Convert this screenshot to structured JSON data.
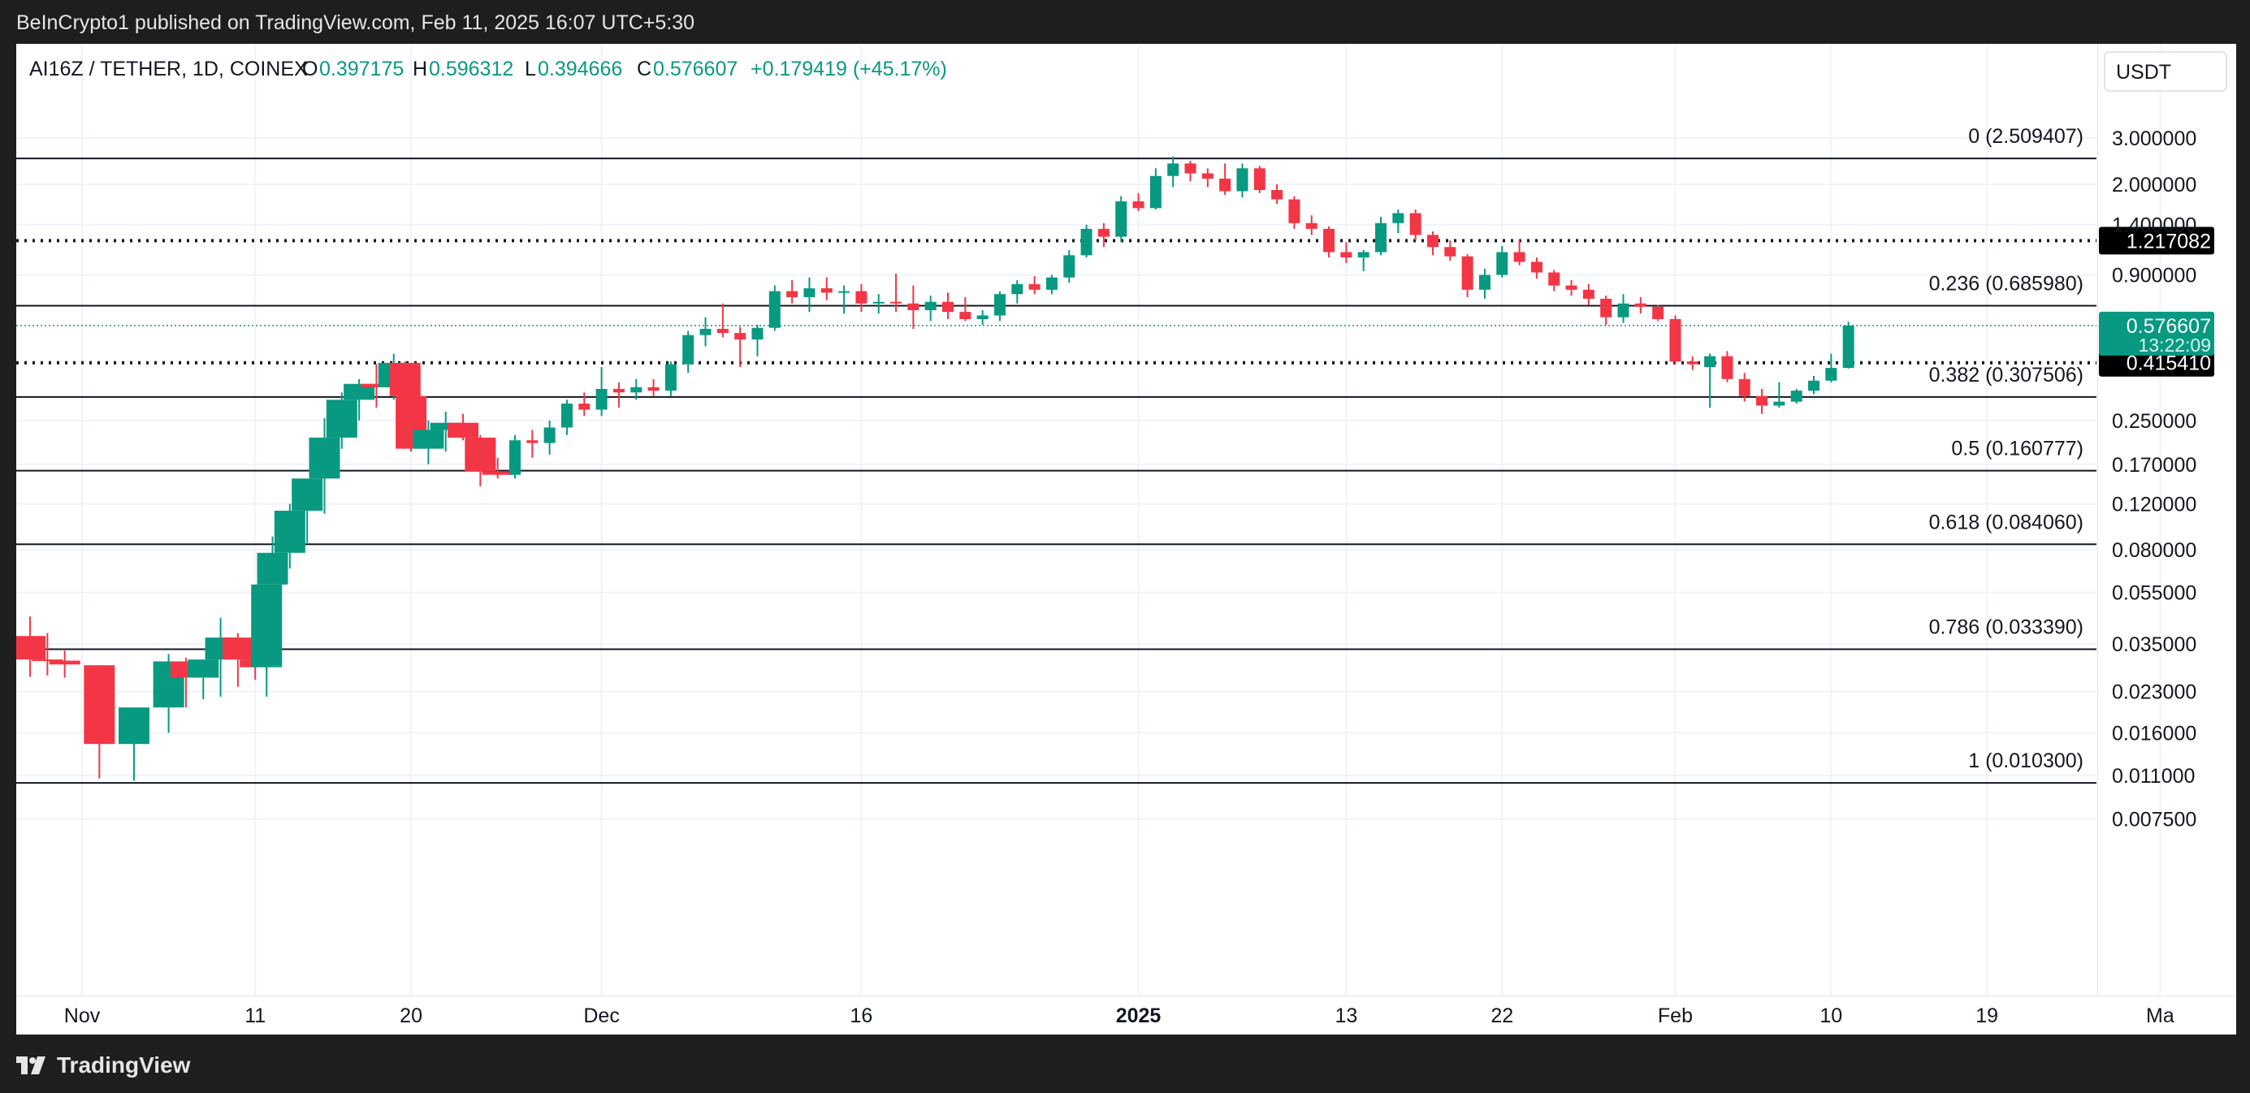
{
  "header": {
    "published": "BeInCrypto1 published on TradingView.com, Feb 11, 2025 16:07 UTC+5:30"
  },
  "legend": {
    "symbol": "AI16Z / TETHER, 1D, COINEX",
    "o_label": "O",
    "o_value": "0.397175",
    "h_label": "H",
    "h_value": "0.596312",
    "l_label": "L",
    "l_value": "0.394666",
    "c_label": "C",
    "c_value": "0.576607",
    "change": "+0.179419 (+45.17%)"
  },
  "currency": "USDT",
  "footer": {
    "brand": "TradingView"
  },
  "colors": {
    "up": "#089981",
    "down": "#f23645",
    "text": "#131722",
    "grid": "#f0f3fa",
    "axis_text": "#131722",
    "price_tag": "#089981",
    "dark_tag": "#000000"
  },
  "chart_data": {
    "type": "candlestick",
    "y_scale": "log",
    "y_ticks": [
      "3.000000",
      "2.000000",
      "1.400000",
      "0.900000",
      "0.250000",
      "0.170000",
      "0.120000",
      "0.080000",
      "0.055000",
      "0.035000",
      "0.023000",
      "0.016000",
      "0.011000",
      "0.007500"
    ],
    "y_tick_values": [
      3.0,
      2.0,
      1.4,
      0.9,
      0.25,
      0.17,
      0.12,
      0.08,
      0.055,
      0.035,
      0.023,
      0.016,
      0.011,
      0.0075
    ],
    "x_ticks": [
      {
        "label": "Nov",
        "date": "2024-11-01",
        "bold": false
      },
      {
        "label": "11",
        "date": "2024-11-11",
        "bold": false
      },
      {
        "label": "20",
        "date": "2024-11-20",
        "bold": false
      },
      {
        "label": "Dec",
        "date": "2024-12-01",
        "bold": false
      },
      {
        "label": "16",
        "date": "2024-12-16",
        "bold": false
      },
      {
        "label": "2025",
        "date": "2025-01-01",
        "bold": true
      },
      {
        "label": "13",
        "date": "2025-01-13",
        "bold": false
      },
      {
        "label": "22",
        "date": "2025-01-22",
        "bold": false
      },
      {
        "label": "Feb",
        "date": "2025-02-01",
        "bold": false
      },
      {
        "label": "10",
        "date": "2025-02-10",
        "bold": false
      },
      {
        "label": "19",
        "date": "2025-02-19",
        "bold": false
      },
      {
        "label": "Ma",
        "date": "2025-03-01",
        "bold": false
      }
    ],
    "fib_levels": [
      {
        "label": "0 (2.509407)",
        "value": 2.509407,
        "style": "solid"
      },
      {
        "label": "0.236 (0.685980)",
        "value": 0.68598,
        "style": "solid"
      },
      {
        "label": "0.382 (0.307506)",
        "value": 0.307506,
        "style": "solid"
      },
      {
        "label": "0.5 (0.160777)",
        "value": 0.160777,
        "style": "solid"
      },
      {
        "label": "0.618 (0.084060)",
        "value": 0.08406,
        "style": "solid"
      },
      {
        "label": "0.786 (0.033390)",
        "value": 0.03339,
        "style": "solid"
      },
      {
        "label": "1 (0.010300)",
        "value": 0.0103,
        "style": "solid"
      }
    ],
    "key_levels": [
      {
        "label": "1.217082",
        "value": 1.217082,
        "style": "dotted"
      },
      {
        "label": "0.415410",
        "value": 0.41541,
        "style": "dotted"
      }
    ],
    "last_price": {
      "label": "0.576607",
      "countdown": "13:22:09",
      "value": 0.576607
    },
    "candles": [
      {
        "date": "2024-10-29",
        "o": 0.0375,
        "h": 0.0445,
        "l": 0.0262,
        "c": 0.0305
      },
      {
        "date": "2024-10-30",
        "o": 0.0305,
        "h": 0.0385,
        "l": 0.0265,
        "c": 0.0302
      },
      {
        "date": "2024-10-31",
        "o": 0.0302,
        "h": 0.033,
        "l": 0.026,
        "c": 0.0292
      },
      {
        "date": "2024-11-02",
        "o": 0.029,
        "h": 0.029,
        "l": 0.0107,
        "c": 0.0145
      },
      {
        "date": "2024-11-04",
        "o": 0.0145,
        "h": 0.02,
        "l": 0.0105,
        "c": 0.02
      },
      {
        "date": "2024-11-06",
        "o": 0.02,
        "h": 0.032,
        "l": 0.016,
        "c": 0.03
      },
      {
        "date": "2024-11-07",
        "o": 0.03,
        "h": 0.031,
        "l": 0.02,
        "c": 0.026
      },
      {
        "date": "2024-11-08",
        "o": 0.026,
        "h": 0.0305,
        "l": 0.0215,
        "c": 0.0305
      },
      {
        "date": "2024-11-09",
        "o": 0.0305,
        "h": 0.044,
        "l": 0.022,
        "c": 0.037
      },
      {
        "date": "2024-11-10",
        "o": 0.037,
        "h": 0.0385,
        "l": 0.024,
        "c": 0.0305
      },
      {
        "date": "2024-11-11",
        "o": 0.0305,
        "h": 0.033,
        "l": 0.0255,
        "c": 0.0285
      },
      {
        "date": "2024-11-11",
        "o": 0.0285,
        "h": 0.034,
        "l": 0.022,
        "c": 0.029
      },
      {
        "date": "2024-11-11",
        "o": 0.029,
        "h": 0.062,
        "l": 0.027,
        "c": 0.059
      },
      {
        "date": "2024-11-12",
        "o": 0.059,
        "h": 0.09,
        "l": 0.055,
        "c": 0.078
      },
      {
        "date": "2024-11-13",
        "o": 0.078,
        "h": 0.12,
        "l": 0.068,
        "c": 0.113
      },
      {
        "date": "2024-11-14",
        "o": 0.113,
        "h": 0.14,
        "l": 0.085,
        "c": 0.15
      },
      {
        "date": "2024-11-15",
        "o": 0.15,
        "h": 0.255,
        "l": 0.11,
        "c": 0.215
      },
      {
        "date": "2024-11-16",
        "o": 0.215,
        "h": 0.32,
        "l": 0.195,
        "c": 0.3
      },
      {
        "date": "2024-11-17",
        "o": 0.3,
        "h": 0.36,
        "l": 0.25,
        "c": 0.345
      },
      {
        "date": "2024-11-18",
        "o": 0.345,
        "h": 0.41,
        "l": 0.28,
        "c": 0.335
      },
      {
        "date": "2024-11-19",
        "o": 0.335,
        "h": 0.45,
        "l": 0.3,
        "c": 0.415
      },
      {
        "date": "2024-11-19",
        "o": 0.415,
        "h": 0.42,
        "l": 0.29,
        "c": 0.31
      },
      {
        "date": "2024-11-20",
        "o": 0.31,
        "h": 0.32,
        "l": 0.19,
        "c": 0.195
      },
      {
        "date": "2024-11-21",
        "o": 0.195,
        "h": 0.25,
        "l": 0.17,
        "c": 0.23
      },
      {
        "date": "2024-11-22",
        "o": 0.23,
        "h": 0.27,
        "l": 0.19,
        "c": 0.245
      },
      {
        "date": "2024-11-23",
        "o": 0.245,
        "h": 0.265,
        "l": 0.21,
        "c": 0.215
      },
      {
        "date": "2024-11-24",
        "o": 0.215,
        "h": 0.22,
        "l": 0.14,
        "c": 0.16
      },
      {
        "date": "2024-11-25",
        "o": 0.16,
        "h": 0.18,
        "l": 0.15,
        "c": 0.155
      },
      {
        "date": "2024-11-26",
        "o": 0.155,
        "h": 0.22,
        "l": 0.15,
        "c": 0.21
      },
      {
        "date": "2024-11-27",
        "o": 0.21,
        "h": 0.23,
        "l": 0.18,
        "c": 0.205
      },
      {
        "date": "2024-11-28",
        "o": 0.205,
        "h": 0.25,
        "l": 0.185,
        "c": 0.235
      },
      {
        "date": "2024-11-29",
        "o": 0.235,
        "h": 0.3,
        "l": 0.22,
        "c": 0.29
      },
      {
        "date": "2024-11-30",
        "o": 0.29,
        "h": 0.32,
        "l": 0.26,
        "c": 0.275
      },
      {
        "date": "2024-12-01",
        "o": 0.275,
        "h": 0.4,
        "l": 0.26,
        "c": 0.33
      },
      {
        "date": "2024-12-02",
        "o": 0.33,
        "h": 0.35,
        "l": 0.28,
        "c": 0.32
      },
      {
        "date": "2024-12-03",
        "o": 0.32,
        "h": 0.36,
        "l": 0.3,
        "c": 0.335
      },
      {
        "date": "2024-12-04",
        "o": 0.335,
        "h": 0.36,
        "l": 0.31,
        "c": 0.325
      },
      {
        "date": "2024-12-05",
        "o": 0.325,
        "h": 0.42,
        "l": 0.31,
        "c": 0.41
      },
      {
        "date": "2024-12-06",
        "o": 0.41,
        "h": 0.55,
        "l": 0.38,
        "c": 0.53
      },
      {
        "date": "2024-12-07",
        "o": 0.53,
        "h": 0.62,
        "l": 0.48,
        "c": 0.56
      },
      {
        "date": "2024-12-08",
        "o": 0.56,
        "h": 0.7,
        "l": 0.52,
        "c": 0.54
      },
      {
        "date": "2024-12-09",
        "o": 0.54,
        "h": 0.57,
        "l": 0.4,
        "c": 0.51
      },
      {
        "date": "2024-12-10",
        "o": 0.51,
        "h": 0.58,
        "l": 0.44,
        "c": 0.565
      },
      {
        "date": "2024-12-11",
        "o": 0.565,
        "h": 0.82,
        "l": 0.55,
        "c": 0.78
      },
      {
        "date": "2024-12-12",
        "o": 0.78,
        "h": 0.86,
        "l": 0.7,
        "c": 0.74
      },
      {
        "date": "2024-12-13",
        "o": 0.74,
        "h": 0.88,
        "l": 0.65,
        "c": 0.8
      },
      {
        "date": "2024-12-14",
        "o": 0.8,
        "h": 0.88,
        "l": 0.72,
        "c": 0.77
      },
      {
        "date": "2024-12-15",
        "o": 0.77,
        "h": 0.82,
        "l": 0.64,
        "c": 0.78
      },
      {
        "date": "2024-12-16",
        "o": 0.78,
        "h": 0.83,
        "l": 0.65,
        "c": 0.7
      },
      {
        "date": "2024-12-17",
        "o": 0.7,
        "h": 0.76,
        "l": 0.64,
        "c": 0.71
      },
      {
        "date": "2024-12-18",
        "o": 0.71,
        "h": 0.91,
        "l": 0.65,
        "c": 0.7
      },
      {
        "date": "2024-12-19",
        "o": 0.7,
        "h": 0.82,
        "l": 0.56,
        "c": 0.66
      },
      {
        "date": "2024-12-20",
        "o": 0.66,
        "h": 0.75,
        "l": 0.6,
        "c": 0.71
      },
      {
        "date": "2024-12-21",
        "o": 0.71,
        "h": 0.77,
        "l": 0.61,
        "c": 0.65
      },
      {
        "date": "2024-12-22",
        "o": 0.65,
        "h": 0.74,
        "l": 0.6,
        "c": 0.61
      },
      {
        "date": "2024-12-23",
        "o": 0.61,
        "h": 0.66,
        "l": 0.58,
        "c": 0.63
      },
      {
        "date": "2024-12-24",
        "o": 0.63,
        "h": 0.78,
        "l": 0.6,
        "c": 0.76
      },
      {
        "date": "2024-12-25",
        "o": 0.76,
        "h": 0.86,
        "l": 0.7,
        "c": 0.83
      },
      {
        "date": "2024-12-26",
        "o": 0.83,
        "h": 0.89,
        "l": 0.76,
        "c": 0.79
      },
      {
        "date": "2024-12-27",
        "o": 0.79,
        "h": 0.9,
        "l": 0.76,
        "c": 0.88
      },
      {
        "date": "2024-12-28",
        "o": 0.88,
        "h": 1.12,
        "l": 0.84,
        "c": 1.07
      },
      {
        "date": "2024-12-29",
        "o": 1.07,
        "h": 1.4,
        "l": 1.05,
        "c": 1.35
      },
      {
        "date": "2024-12-30",
        "o": 1.35,
        "h": 1.42,
        "l": 1.15,
        "c": 1.26
      },
      {
        "date": "2024-12-31",
        "o": 1.26,
        "h": 1.8,
        "l": 1.2,
        "c": 1.72
      },
      {
        "date": "2025-01-01",
        "o": 1.72,
        "h": 1.85,
        "l": 1.58,
        "c": 1.62
      },
      {
        "date": "2025-01-02",
        "o": 1.62,
        "h": 2.3,
        "l": 1.6,
        "c": 2.15
      },
      {
        "date": "2025-01-03",
        "o": 2.15,
        "h": 2.55,
        "l": 1.95,
        "c": 2.4
      },
      {
        "date": "2025-01-04",
        "o": 2.4,
        "h": 2.46,
        "l": 2.05,
        "c": 2.2
      },
      {
        "date": "2025-01-05",
        "o": 2.2,
        "h": 2.3,
        "l": 1.95,
        "c": 2.1
      },
      {
        "date": "2025-01-06",
        "o": 2.1,
        "h": 2.4,
        "l": 1.82,
        "c": 1.88
      },
      {
        "date": "2025-01-07",
        "o": 1.88,
        "h": 2.4,
        "l": 1.78,
        "c": 2.3
      },
      {
        "date": "2025-01-08",
        "o": 2.3,
        "h": 2.35,
        "l": 1.85,
        "c": 1.9
      },
      {
        "date": "2025-01-09",
        "o": 1.9,
        "h": 2.0,
        "l": 1.68,
        "c": 1.75
      },
      {
        "date": "2025-01-10",
        "o": 1.75,
        "h": 1.8,
        "l": 1.35,
        "c": 1.42
      },
      {
        "date": "2025-01-11",
        "o": 1.42,
        "h": 1.52,
        "l": 1.28,
        "c": 1.35
      },
      {
        "date": "2025-01-12",
        "o": 1.35,
        "h": 1.38,
        "l": 1.05,
        "c": 1.1
      },
      {
        "date": "2025-01-13",
        "o": 1.1,
        "h": 1.2,
        "l": 1.0,
        "c": 1.05
      },
      {
        "date": "2025-01-14",
        "o": 1.05,
        "h": 1.12,
        "l": 0.93,
        "c": 1.1
      },
      {
        "date": "2025-01-15",
        "o": 1.1,
        "h": 1.5,
        "l": 1.07,
        "c": 1.42
      },
      {
        "date": "2025-01-16",
        "o": 1.42,
        "h": 1.6,
        "l": 1.3,
        "c": 1.55
      },
      {
        "date": "2025-01-17",
        "o": 1.55,
        "h": 1.6,
        "l": 1.22,
        "c": 1.28
      },
      {
        "date": "2025-01-18",
        "o": 1.28,
        "h": 1.32,
        "l": 1.07,
        "c": 1.15
      },
      {
        "date": "2025-01-19",
        "o": 1.15,
        "h": 1.22,
        "l": 1.02,
        "c": 1.06
      },
      {
        "date": "2025-01-20",
        "o": 1.06,
        "h": 1.08,
        "l": 0.74,
        "c": 0.79
      },
      {
        "date": "2025-01-21",
        "o": 0.79,
        "h": 0.95,
        "l": 0.73,
        "c": 0.9
      },
      {
        "date": "2025-01-22",
        "o": 0.9,
        "h": 1.16,
        "l": 0.88,
        "c": 1.1
      },
      {
        "date": "2025-01-23",
        "o": 1.1,
        "h": 1.23,
        "l": 0.98,
        "c": 1.01
      },
      {
        "date": "2025-01-24",
        "o": 1.01,
        "h": 1.05,
        "l": 0.87,
        "c": 0.92
      },
      {
        "date": "2025-01-25",
        "o": 0.92,
        "h": 0.94,
        "l": 0.78,
        "c": 0.82
      },
      {
        "date": "2025-01-26",
        "o": 0.82,
        "h": 0.86,
        "l": 0.75,
        "c": 0.79
      },
      {
        "date": "2025-01-27",
        "o": 0.79,
        "h": 0.83,
        "l": 0.69,
        "c": 0.73
      },
      {
        "date": "2025-01-28",
        "o": 0.73,
        "h": 0.75,
        "l": 0.58,
        "c": 0.62
      },
      {
        "date": "2025-01-29",
        "o": 0.62,
        "h": 0.76,
        "l": 0.59,
        "c": 0.7
      },
      {
        "date": "2025-01-30",
        "o": 0.7,
        "h": 0.74,
        "l": 0.64,
        "c": 0.68
      },
      {
        "date": "2025-01-31",
        "o": 0.68,
        "h": 0.69,
        "l": 0.6,
        "c": 0.61
      },
      {
        "date": "2025-02-01",
        "o": 0.61,
        "h": 0.63,
        "l": 0.41,
        "c": 0.42
      },
      {
        "date": "2025-02-02",
        "o": 0.42,
        "h": 0.44,
        "l": 0.39,
        "c": 0.41
      },
      {
        "date": "2025-02-03",
        "o": 0.4,
        "h": 0.45,
        "l": 0.28,
        "c": 0.44
      },
      {
        "date": "2025-02-04",
        "o": 0.44,
        "h": 0.46,
        "l": 0.35,
        "c": 0.36
      },
      {
        "date": "2025-02-05",
        "o": 0.36,
        "h": 0.38,
        "l": 0.295,
        "c": 0.31
      },
      {
        "date": "2025-02-06",
        "o": 0.31,
        "h": 0.33,
        "l": 0.265,
        "c": 0.285
      },
      {
        "date": "2025-02-07",
        "o": 0.285,
        "h": 0.35,
        "l": 0.28,
        "c": 0.295
      },
      {
        "date": "2025-02-08",
        "o": 0.295,
        "h": 0.33,
        "l": 0.29,
        "c": 0.325
      },
      {
        "date": "2025-02-09",
        "o": 0.325,
        "h": 0.37,
        "l": 0.315,
        "c": 0.355
      },
      {
        "date": "2025-02-10",
        "o": 0.355,
        "h": 0.45,
        "l": 0.35,
        "c": 0.397
      },
      {
        "date": "2025-02-11",
        "o": 0.397175,
        "h": 0.596312,
        "l": 0.394666,
        "c": 0.576607
      }
    ]
  }
}
